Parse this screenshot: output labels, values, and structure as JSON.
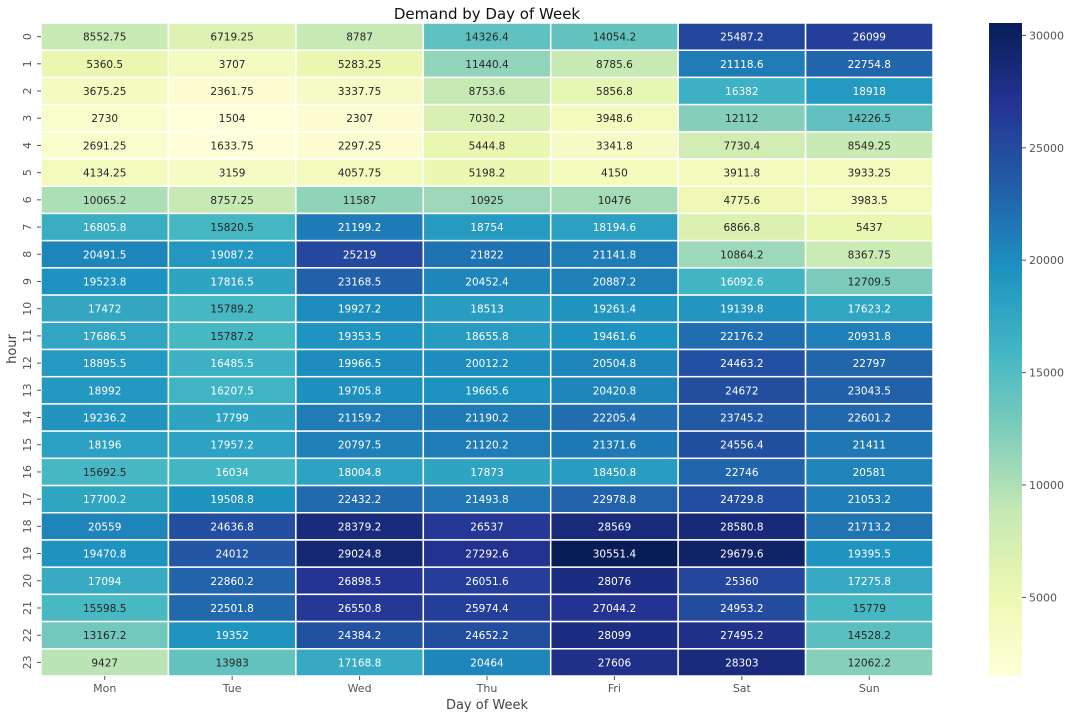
{
  "chart_data": {
    "type": "heatmap",
    "title": "Demand by Day of Week",
    "xlabel": "Day of Week",
    "ylabel": "hour",
    "x_categories": [
      "Mon",
      "Tue",
      "Wed",
      "Thu",
      "Fri",
      "Sat",
      "Sun"
    ],
    "y_categories": [
      "0",
      "1",
      "2",
      "3",
      "4",
      "5",
      "6",
      "7",
      "8",
      "9",
      "10",
      "11",
      "12",
      "13",
      "14",
      "15",
      "16",
      "17",
      "18",
      "19",
      "20",
      "21",
      "22",
      "23"
    ],
    "values": [
      [
        "8552.75",
        "6719.25",
        "8787",
        "14326.4",
        "14054.2",
        "25487.2",
        "26099"
      ],
      [
        "5360.5",
        "3707",
        "5283.25",
        "11440.4",
        "8785.6",
        "21118.6",
        "22754.8"
      ],
      [
        "3675.25",
        "2361.75",
        "3337.75",
        "8753.6",
        "5856.8",
        "16382",
        "18918"
      ],
      [
        "2730",
        "1504",
        "2307",
        "7030.2",
        "3948.6",
        "12112",
        "14226.5"
      ],
      [
        "2691.25",
        "1633.75",
        "2297.25",
        "5444.8",
        "3341.8",
        "7730.4",
        "8549.25"
      ],
      [
        "4134.25",
        "3159",
        "4057.75",
        "5198.2",
        "4150",
        "3911.8",
        "3933.25"
      ],
      [
        "10065.2",
        "8757.25",
        "11587",
        "10925",
        "10476",
        "4775.6",
        "3983.5"
      ],
      [
        "16805.8",
        "15820.5",
        "21199.2",
        "18754",
        "18194.6",
        "6866.8",
        "5437"
      ],
      [
        "20491.5",
        "19087.2",
        "25219",
        "21822",
        "21141.8",
        "10864.2",
        "8367.75"
      ],
      [
        "19523.8",
        "17816.5",
        "23168.5",
        "20452.4",
        "20887.2",
        "16092.6",
        "12709.5"
      ],
      [
        "17472",
        "15789.2",
        "19927.2",
        "18513",
        "19261.4",
        "19139.8",
        "17623.2"
      ],
      [
        "17686.5",
        "15787.2",
        "19353.5",
        "18655.8",
        "19461.6",
        "22176.2",
        "20931.8"
      ],
      [
        "18895.5",
        "16485.5",
        "19966.5",
        "20012.2",
        "20504.8",
        "24463.2",
        "22797"
      ],
      [
        "18992",
        "16207.5",
        "19705.8",
        "19665.6",
        "20420.8",
        "24672",
        "23043.5"
      ],
      [
        "19236.2",
        "17799",
        "21159.2",
        "21190.2",
        "22205.4",
        "23745.2",
        "22601.2"
      ],
      [
        "18196",
        "17957.2",
        "20797.5",
        "21120.2",
        "21371.6",
        "24556.4",
        "21411"
      ],
      [
        "15692.5",
        "16034",
        "18004.8",
        "17873",
        "18450.8",
        "22746",
        "20581"
      ],
      [
        "17700.2",
        "19508.8",
        "22432.2",
        "21493.8",
        "22978.8",
        "24729.8",
        "21053.2"
      ],
      [
        "20559",
        "24636.8",
        "28379.2",
        "26537",
        "28569",
        "28580.8",
        "21713.2"
      ],
      [
        "19470.8",
        "24012",
        "29024.8",
        "27292.6",
        "30551.4",
        "29679.6",
        "19395.5"
      ],
      [
        "17094",
        "22860.2",
        "26898.5",
        "26051.6",
        "28076",
        "25360",
        "17275.8"
      ],
      [
        "15598.5",
        "22501.8",
        "26550.8",
        "25974.4",
        "27044.2",
        "24953.2",
        "15779"
      ],
      [
        "13167.2",
        "19352",
        "24384.2",
        "24652.2",
        "28099",
        "27495.2",
        "14528.2"
      ],
      [
        "9427",
        "13983",
        "17168.8",
        "20464",
        "27606",
        "28303",
        "12062.2"
      ]
    ],
    "colorbar": {
      "min": 1504,
      "max": 30551.4,
      "ticks": [
        "5000",
        "10000",
        "15000",
        "20000",
        "25000",
        "30000"
      ],
      "colormap": [
        "#ffffd9",
        "#edf8b1",
        "#c7e9b4",
        "#7fcdbb",
        "#41b6c4",
        "#1d91c0",
        "#225ea8",
        "#253494",
        "#081d58"
      ]
    },
    "grid": false,
    "legend": "colorbar-right"
  }
}
